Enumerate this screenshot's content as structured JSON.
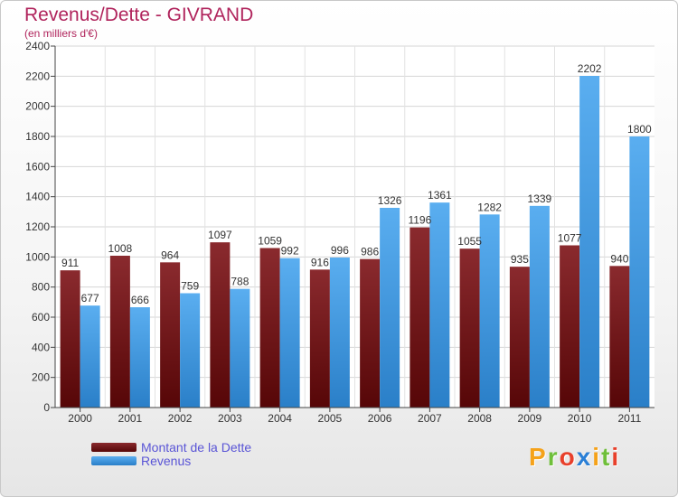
{
  "title": "Revenus/Dette - GIVRAND",
  "subtitle": "(en milliers d'€)",
  "chart_data": {
    "type": "bar",
    "title": "Revenus/Dette - GIVRAND",
    "subtitle": "(en milliers d'€)",
    "categories": [
      "2000",
      "2001",
      "2002",
      "2003",
      "2004",
      "2005",
      "2006",
      "2007",
      "2008",
      "2009",
      "2010",
      "2011"
    ],
    "series": [
      {
        "name": "Montant de la Dette",
        "color": "#7a1418",
        "values": [
          911,
          1008,
          964,
          1097,
          1059,
          916,
          986,
          1196,
          1055,
          935,
          1077,
          940
        ]
      },
      {
        "name": "Revenus",
        "color": "#4aa0e6",
        "values": [
          677,
          666,
          759,
          788,
          992,
          996,
          1326,
          1361,
          1282,
          1339,
          2202,
          1800
        ]
      }
    ],
    "ylim": [
      0,
      2400
    ],
    "yticks": [
      0,
      200,
      400,
      600,
      800,
      1000,
      1200,
      1400,
      1600,
      1800,
      2000,
      2200,
      2400
    ],
    "grid": true,
    "legend": "bottom-left"
  },
  "logo": {
    "letters": [
      "P",
      "r",
      "o",
      "x",
      "i",
      "t",
      "i"
    ],
    "colors": [
      "#f5a21a",
      "#6fbf3a",
      "#e8402b",
      "#2a7fd6",
      "#f5a21a",
      "#6fbf3a",
      "#e8402b"
    ]
  }
}
